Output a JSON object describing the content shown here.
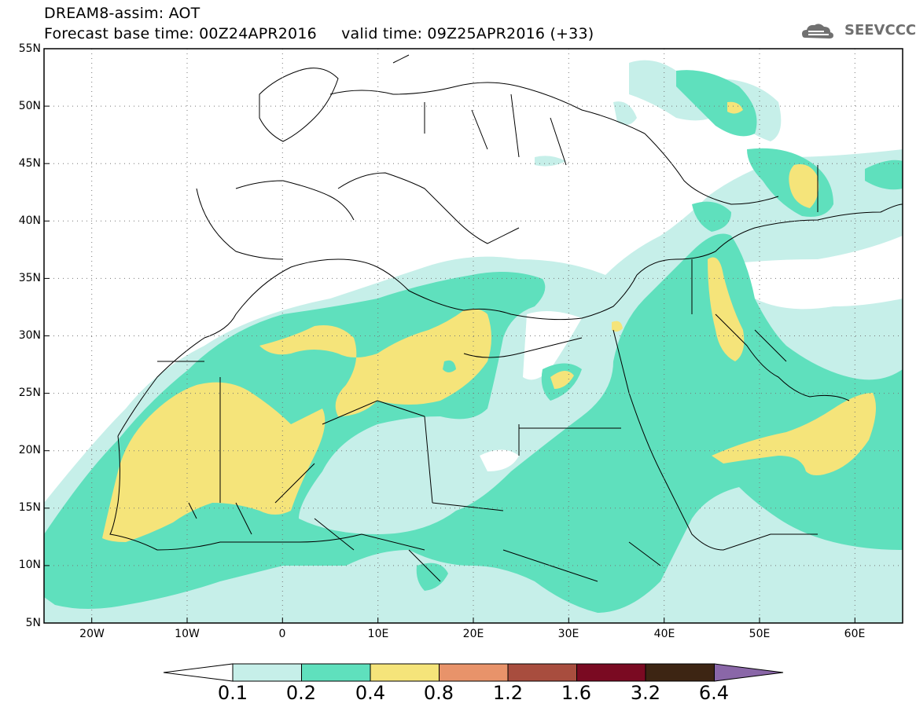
{
  "header": {
    "title_line1": "DREAM8-assim: AOT",
    "title_line2": "Forecast base time: 00Z24APR2016     valid time: 09Z25APR2016 (+33)",
    "logo_text": "SEEVCCC"
  },
  "map": {
    "lat_labels": [
      "55N",
      "50N",
      "45N",
      "40N",
      "35N",
      "30N",
      "25N",
      "20N",
      "15N",
      "10N",
      "5N"
    ],
    "lon_labels": [
      "20W",
      "10W",
      "0",
      "10E",
      "20E",
      "30E",
      "40E",
      "50E",
      "60E"
    ],
    "lat_range": [
      5,
      55
    ],
    "lon_range": [
      -25,
      65
    ],
    "grid": "dotted"
  },
  "legend": {
    "thresholds": [
      "0.1",
      "0.2",
      "0.4",
      "0.8",
      "1.2",
      "1.6",
      "3.2",
      "6.4"
    ],
    "colors": [
      "#ffffff",
      "#c6efe9",
      "#5fe0bd",
      "#f5e47a",
      "#e8936a",
      "#a84d3e",
      "#7a0a22",
      "#3d2513",
      "#8a67a8"
    ]
  },
  "colors": {
    "c01": "#c6efe9",
    "c02": "#5fe0bd",
    "c04": "#f5e47a",
    "land": "#ffffff",
    "borders": "#000000"
  }
}
